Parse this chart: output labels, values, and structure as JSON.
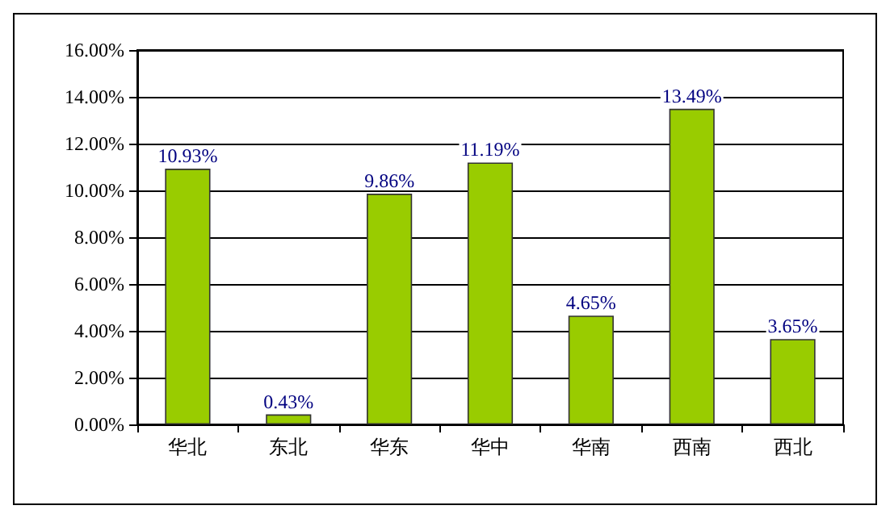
{
  "chart_data": {
    "type": "bar",
    "categories": [
      "华北",
      "东北",
      "华东",
      "华中",
      "华南",
      "西南",
      "西北"
    ],
    "values": [
      10.93,
      0.43,
      9.86,
      11.19,
      4.65,
      13.49,
      3.65
    ],
    "value_labels": [
      "10.93%",
      "0.43%",
      "9.86%",
      "11.19%",
      "4.65%",
      "13.49%",
      "3.65%"
    ],
    "color": "#99cc00",
    "ylim": [
      0,
      16
    ],
    "yticks": [
      {
        "value": 0,
        "label": "0.00%"
      },
      {
        "value": 2,
        "label": "2.00%"
      },
      {
        "value": 4,
        "label": "4.00%"
      },
      {
        "value": 6,
        "label": "6.00%"
      },
      {
        "value": 8,
        "label": "8.00%"
      },
      {
        "value": 10,
        "label": "10.00%"
      },
      {
        "value": 12,
        "label": "12.00%"
      },
      {
        "value": 14,
        "label": "14.00%"
      },
      {
        "value": 16,
        "label": "16.00%"
      }
    ],
    "grid": "y"
  }
}
